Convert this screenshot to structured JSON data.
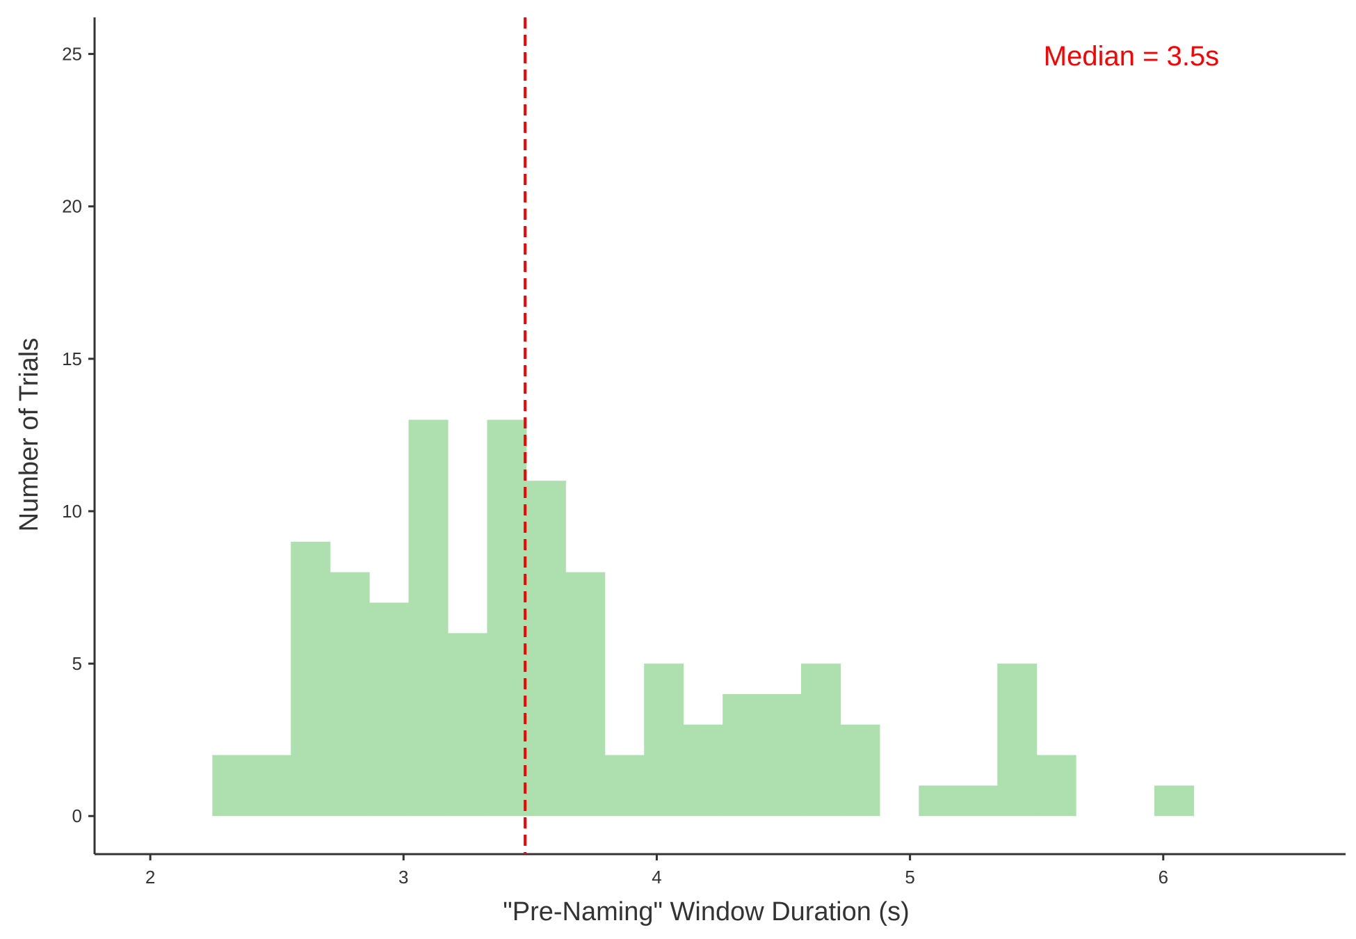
{
  "chart_data": {
    "type": "bar",
    "title": "",
    "xlabel": "\"Pre-Naming\" Window Duration (s)",
    "ylabel": "Number of Trials",
    "xlim": [
      1.78,
      6.72
    ],
    "ylim": [
      -1.25,
      26.2
    ],
    "x_ticks": [
      "2",
      "3",
      "4",
      "5",
      "6"
    ],
    "y_ticks": [
      "0",
      "5",
      "10",
      "15",
      "20",
      "25"
    ],
    "bin_width": 0.155,
    "bins": [
      {
        "start": 2.245,
        "count": 2
      },
      {
        "start": 2.4,
        "count": 2
      },
      {
        "start": 2.555,
        "count": 9
      },
      {
        "start": 2.71,
        "count": 8
      },
      {
        "start": 2.865,
        "count": 7
      },
      {
        "start": 3.02,
        "count": 13
      },
      {
        "start": 3.175,
        "count": 6
      },
      {
        "start": 3.33,
        "count": 13
      },
      {
        "start": 3.485,
        "count": 11
      },
      {
        "start": 3.64,
        "count": 8
      },
      {
        "start": 3.795,
        "count": 2
      },
      {
        "start": 3.95,
        "count": 5
      },
      {
        "start": 4.105,
        "count": 3
      },
      {
        "start": 4.26,
        "count": 4
      },
      {
        "start": 4.415,
        "count": 4
      },
      {
        "start": 4.57,
        "count": 5
      },
      {
        "start": 4.725,
        "count": 3
      },
      {
        "start": 5.035,
        "count": 1
      },
      {
        "start": 5.19,
        "count": 1
      },
      {
        "start": 5.345,
        "count": 5
      },
      {
        "start": 5.5,
        "count": 2
      },
      {
        "start": 5.965,
        "count": 1
      }
    ],
    "bar_color": "#aedfae",
    "median": {
      "value": 3.48,
      "label": "Median = 3.5s",
      "color": "#ff0000"
    },
    "axis_color": "#333333",
    "grid": false,
    "legend": "none"
  }
}
